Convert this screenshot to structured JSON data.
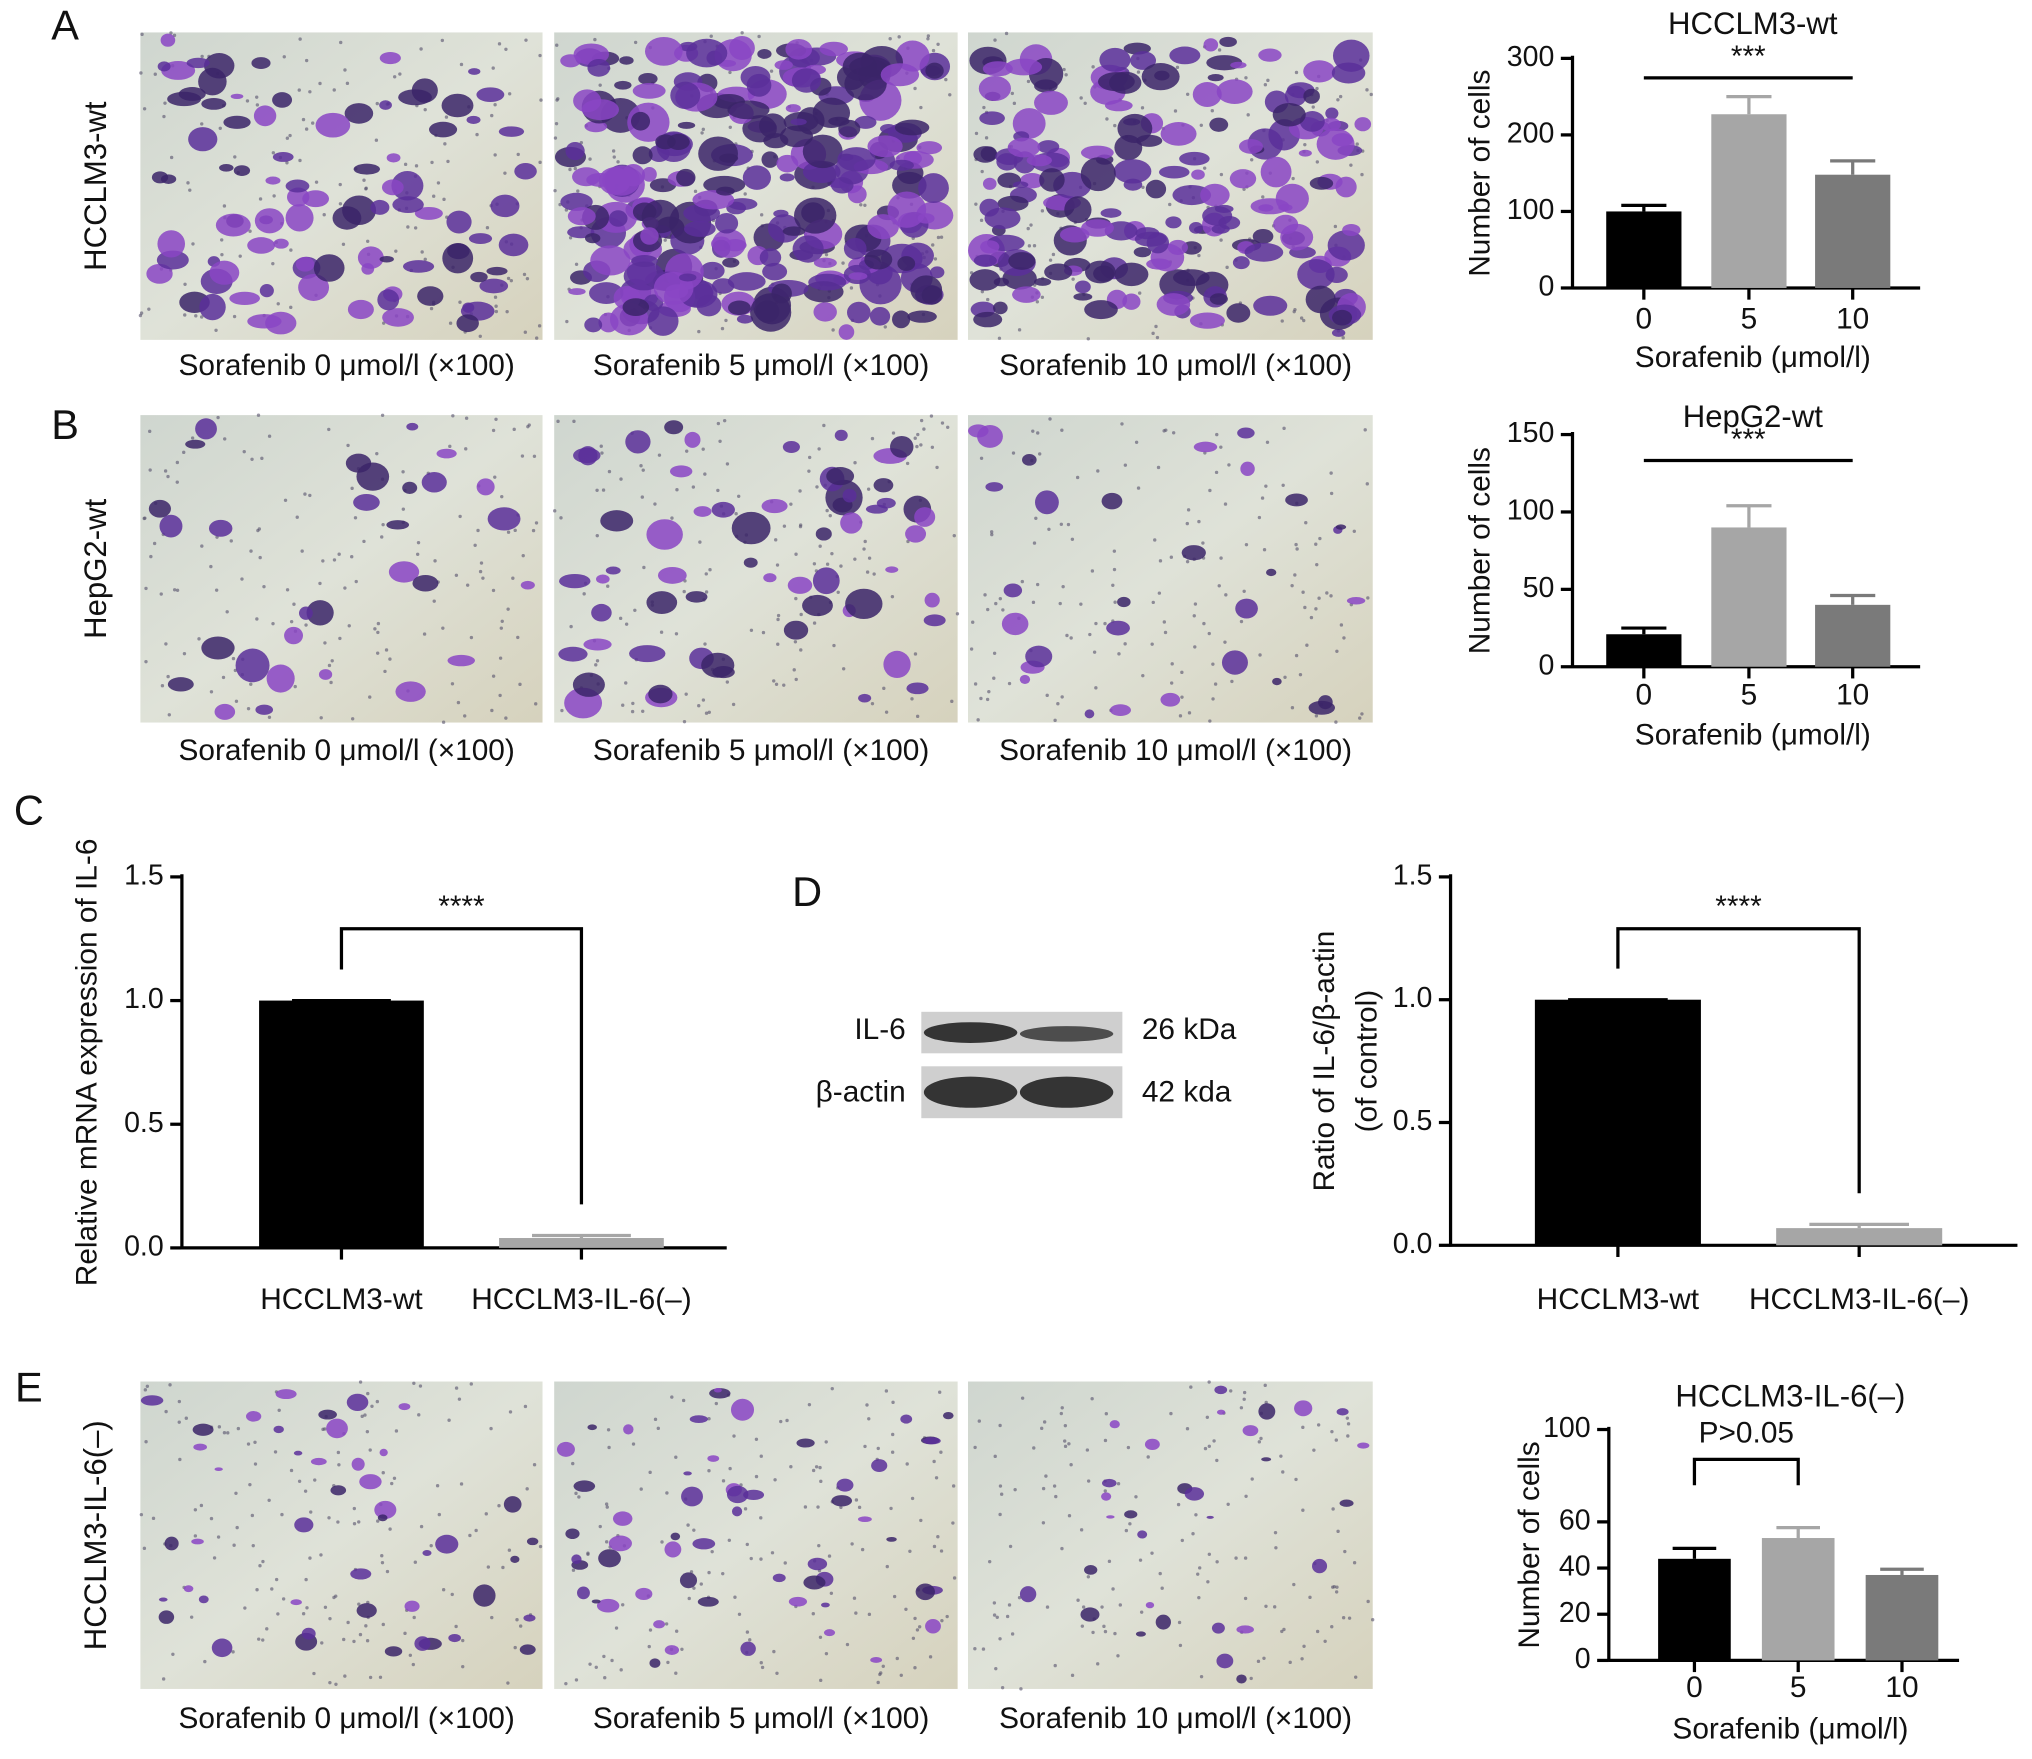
{
  "panels": [
    "A",
    "B",
    "C",
    "D",
    "E"
  ],
  "micrographs": [
    {
      "row_label": "HCCLM3-wt",
      "captions": [
        "Sorafenib 0 μmol/l (×100)",
        "Sorafenib 5 μmol/l (×100)",
        "Sorafenib 10 μmol/l (×100)"
      ]
    },
    {
      "row_label": "HepG2-wt",
      "captions": [
        "Sorafenib 0 μmol/l (×100)",
        "Sorafenib 5 μmol/l (×100)",
        "Sorafenib 10 μmol/l (×100)"
      ]
    },
    {
      "row_label": "HCCLM3-IL-6(–)",
      "captions": [
        "Sorafenib 0 μmol/l (×100)",
        "Sorafenib 5 μmol/l (×100)",
        "Sorafenib 10 μmol/l (×100)"
      ]
    }
  ],
  "blot": {
    "bands": [
      {
        "label": "IL-6",
        "size": "26 kDa"
      },
      {
        "label": "β-actin",
        "size": "42 kda"
      }
    ]
  },
  "chart_data": [
    {
      "type": "bar",
      "title": "HCCLM3-wt",
      "xlabel": "Sorafenib (μmol/l)",
      "ylabel": [
        "Number of cells"
      ],
      "categories": [
        "0",
        "5",
        "10"
      ],
      "values": [
        100,
        227,
        148
      ],
      "errors": [
        8,
        23,
        18
      ],
      "colors": [
        "#000000",
        "#a6a6a6",
        "#7a7a7a"
      ],
      "ylim": [
        0,
        300
      ],
      "yticks": [
        0,
        100,
        200,
        300
      ],
      "annotation": "***",
      "bracket": [
        0,
        2
      ]
    },
    {
      "type": "bar",
      "title": "HepG2-wt",
      "xlabel": "Sorafenib (μmol/l)",
      "ylabel": [
        "Number of cells"
      ],
      "categories": [
        "0",
        "5",
        "10"
      ],
      "values": [
        21,
        90,
        40
      ],
      "errors": [
        4,
        14,
        6
      ],
      "colors": [
        "#000000",
        "#a6a6a6",
        "#7a7a7a"
      ],
      "ylim": [
        0,
        150
      ],
      "yticks": [
        0,
        50,
        100,
        150
      ],
      "annotation": "***",
      "bracket": [
        0,
        2
      ]
    },
    {
      "type": "bar",
      "ylabel": [
        "Relative mRNA expression of IL-6"
      ],
      "categories": [
        "HCCLM3-wt",
        "HCCLM3-IL-6(–)"
      ],
      "values": [
        1.0,
        0.04
      ],
      "errors": [
        0,
        0.01
      ],
      "colors": [
        "#000000",
        "#a6a6a6"
      ],
      "ylim": [
        0,
        1.5
      ],
      "yticks": [
        {
          "value": 0,
          "label": "0.0"
        },
        0.5,
        {
          "value": 1,
          "label": "1.0"
        },
        1.5
      ],
      "annotation": "****",
      "bracket": [
        0,
        1
      ]
    },
    {
      "type": "bar",
      "ylabel": [
        "Ratio of IL-6/β-actin",
        "(of control)"
      ],
      "categories": [
        "HCCLM3-wt",
        "HCCLM3-IL-6(–)"
      ],
      "values": [
        1.0,
        0.07
      ],
      "errors": [
        0,
        0.015
      ],
      "colors": [
        "#000000",
        "#a6a6a6"
      ],
      "ylim": [
        0,
        1.5
      ],
      "yticks": [
        {
          "value": 0,
          "label": "0.0"
        },
        0.5,
        {
          "value": 1,
          "label": "1.0"
        },
        1.5
      ],
      "annotation": "****",
      "bracket": [
        0,
        1
      ]
    },
    {
      "type": "bar",
      "title": "HCCLM3-IL-6(–)",
      "xlabel": "Sorafenib (μmol/l)",
      "ylabel": [
        "Number of cells"
      ],
      "categories": [
        "0",
        "5",
        "10"
      ],
      "values": [
        44,
        53,
        37
      ],
      "errors": [
        4.5,
        4.5,
        2.5
      ],
      "colors": [
        "#000000",
        "#a6a6a6",
        "#7a7a7a"
      ],
      "ylim": [
        0,
        100
      ],
      "yticks": [
        0,
        20,
        40,
        60,
        100
      ],
      "annotation": "P>0.05",
      "bracket": [
        0,
        1
      ]
    }
  ]
}
